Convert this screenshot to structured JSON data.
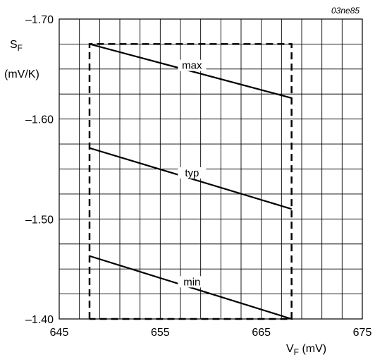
{
  "figure_id": "03ne85",
  "chart_data": {
    "type": "line",
    "title": "",
    "ylabel_main": "S",
    "ylabel_sub": "F",
    "ylabel_unit": "(mV/K)",
    "xlabel_main": "V",
    "xlabel_sub": "F",
    "xlabel_unit": " (mV)",
    "xlim": [
      645,
      675
    ],
    "ylim": [
      -1.4,
      -1.7
    ],
    "x_ticks": [
      645,
      655,
      665,
      675
    ],
    "x_tick_labels": [
      "645",
      "655",
      "665",
      "675"
    ],
    "y_ticks": [
      -1.7,
      -1.6,
      -1.5,
      -1.4
    ],
    "y_tick_labels": [
      "–1.70",
      "–1.60",
      "–1.50",
      "–1.40"
    ],
    "grid": true,
    "series": [
      {
        "name": "max",
        "x": [
          648,
          668
        ],
        "y": [
          -1.675,
          -1.621
        ]
      },
      {
        "name": "typ",
        "x": [
          648,
          668
        ],
        "y": [
          -1.571,
          -1.51
        ]
      },
      {
        "name": "min",
        "x": [
          648,
          668
        ],
        "y": [
          -1.463,
          -1.4
        ]
      }
    ],
    "boundary_box": {
      "x": [
        648,
        668
      ],
      "y": [
        -1.4,
        -1.675
      ]
    }
  }
}
